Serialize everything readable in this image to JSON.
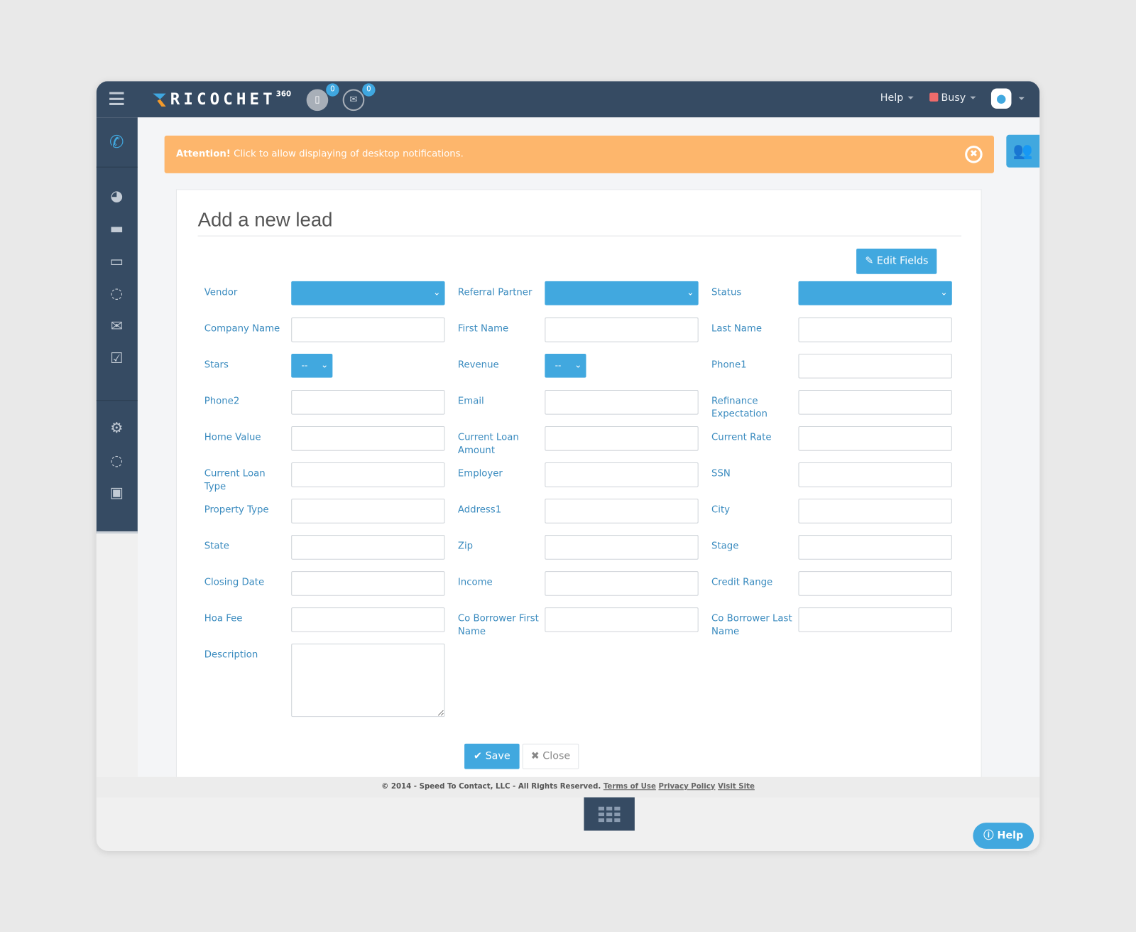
{
  "app": {
    "logo_text": "RICOCHET",
    "logo_sup": "360"
  },
  "topbar": {
    "notif_count": "0",
    "mail_count": "0",
    "help": "Help",
    "status": "Busy",
    "status_color": "#ef6b6b"
  },
  "sidebar": {
    "icons": [
      "phone-dialpad-icon",
      "pie-chart-icon",
      "contacts-folder-icon",
      "chat-icon",
      "network-icon",
      "mail-icon",
      "tasks-check-icon",
      "gear-icon",
      "integrations-icon",
      "monitor-chart-icon"
    ]
  },
  "alert": {
    "strong": "Attention!",
    "text": " Click to allow displaying of desktop notifications."
  },
  "form": {
    "title": "Add a new lead",
    "edit_fields": "Edit Fields",
    "rows": [
      [
        {
          "label": "Vendor",
          "type": "select"
        },
        {
          "label": "Referral Partner",
          "type": "select"
        },
        {
          "label": "Status",
          "type": "select"
        }
      ],
      [
        {
          "label": "Company Name",
          "type": "text"
        },
        {
          "label": "First Name",
          "type": "text"
        },
        {
          "label": "Last Name",
          "type": "text"
        }
      ],
      [
        {
          "label": "Stars",
          "type": "small-select",
          "value": "--"
        },
        {
          "label": "Revenue",
          "type": "small-select",
          "value": "--"
        },
        {
          "label": "Phone1",
          "type": "text"
        }
      ],
      [
        {
          "label": "Phone2",
          "type": "text"
        },
        {
          "label": "Email",
          "type": "text"
        },
        {
          "label": "Refinance Expectation",
          "type": "text"
        }
      ],
      [
        {
          "label": "Home Value",
          "type": "text"
        },
        {
          "label": "Current Loan Amount",
          "type": "text"
        },
        {
          "label": "Current Rate",
          "type": "text"
        }
      ],
      [
        {
          "label": "Current Loan Type",
          "type": "text"
        },
        {
          "label": "Employer",
          "type": "text"
        },
        {
          "label": "SSN",
          "type": "text"
        }
      ],
      [
        {
          "label": "Property Type",
          "type": "text"
        },
        {
          "label": "Address1",
          "type": "text"
        },
        {
          "label": "City",
          "type": "text"
        }
      ],
      [
        {
          "label": "State",
          "type": "text"
        },
        {
          "label": "Zip",
          "type": "text"
        },
        {
          "label": "Stage",
          "type": "text"
        }
      ],
      [
        {
          "label": "Closing Date",
          "type": "text"
        },
        {
          "label": "Income",
          "type": "text"
        },
        {
          "label": "Credit Range",
          "type": "text"
        }
      ],
      [
        {
          "label": "Hoa Fee",
          "type": "text"
        },
        {
          "label": "Co Borrower First Name",
          "type": "text"
        },
        {
          "label": "Co Borrower Last Name",
          "type": "text"
        }
      ],
      [
        {
          "label": "Description",
          "type": "textarea"
        }
      ]
    ],
    "save": "Save",
    "close": "Close"
  },
  "footer": {
    "copyright": "© 2014 - Speed To Contact, LLC - All Rights Reserved.",
    "terms": "Terms of Use",
    "privacy": "Privacy Policy",
    "visit": "Visit Site"
  },
  "help_button": "Help",
  "colors": {
    "topbar": "#364b63",
    "accent": "#41a8df",
    "alert": "#fdb66c",
    "label": "#3a8bbf"
  }
}
